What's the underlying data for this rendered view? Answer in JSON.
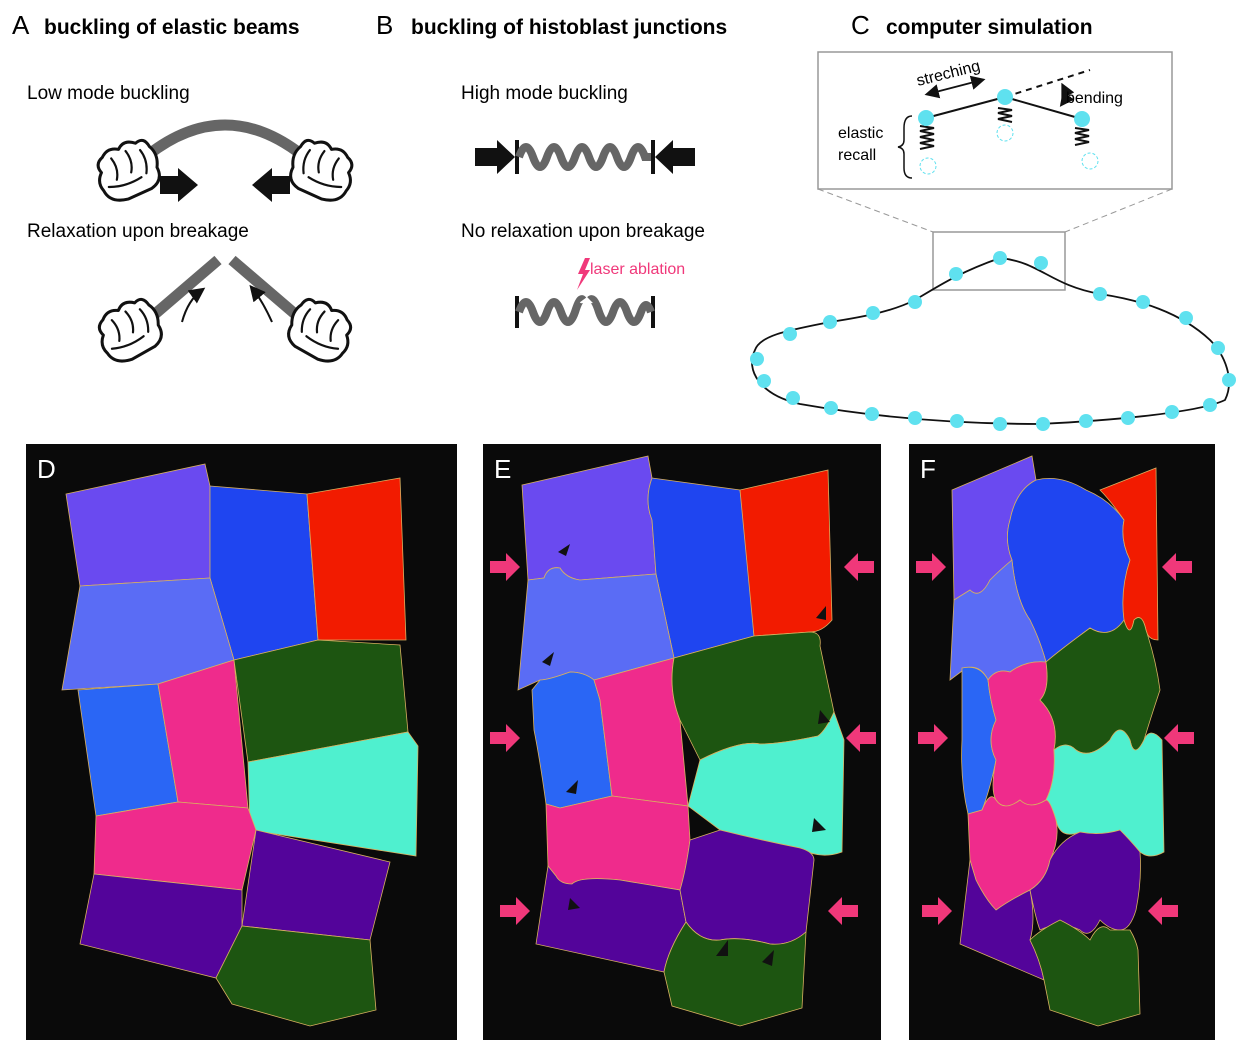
{
  "panel_a": {
    "letter": "A",
    "title": "buckling of elastic beams",
    "label_top": "Low mode buckling",
    "label_bottom": "Relaxation upon breakage"
  },
  "panel_b": {
    "letter": "B",
    "title": "buckling of  histoblast junctions",
    "label_top": "High mode buckling",
    "label_bottom": "No relaxation upon breakage",
    "ablation_label": "laser ablation"
  },
  "panel_c": {
    "letter": "C",
    "title": "computer simulation",
    "stretching_label": "streching",
    "bending_label": "bending",
    "elastic_label_line1": "elastic",
    "elastic_label_line2": "recall"
  },
  "panel_d": {
    "letter": "D"
  },
  "panel_e": {
    "letter": "E"
  },
  "panel_f": {
    "letter": "F"
  },
  "colors": {
    "cyan_node": "#5fe1ef",
    "pink_arrow": "#f0387a",
    "beam_gray": "#666666",
    "panel_bg": "#0a0a0a",
    "cell_violet": "#6a4af0",
    "cell_blue": "#1f45f0",
    "cell_red": "#f21b00",
    "cell_periwinkle": "#5a6cf5",
    "cell_azure": "#2a66f5",
    "cell_pink": "#ef2b8c",
    "cell_green": "#1d5511",
    "cell_aqua": "#4ff0cf",
    "cell_purple": "#53049a"
  }
}
